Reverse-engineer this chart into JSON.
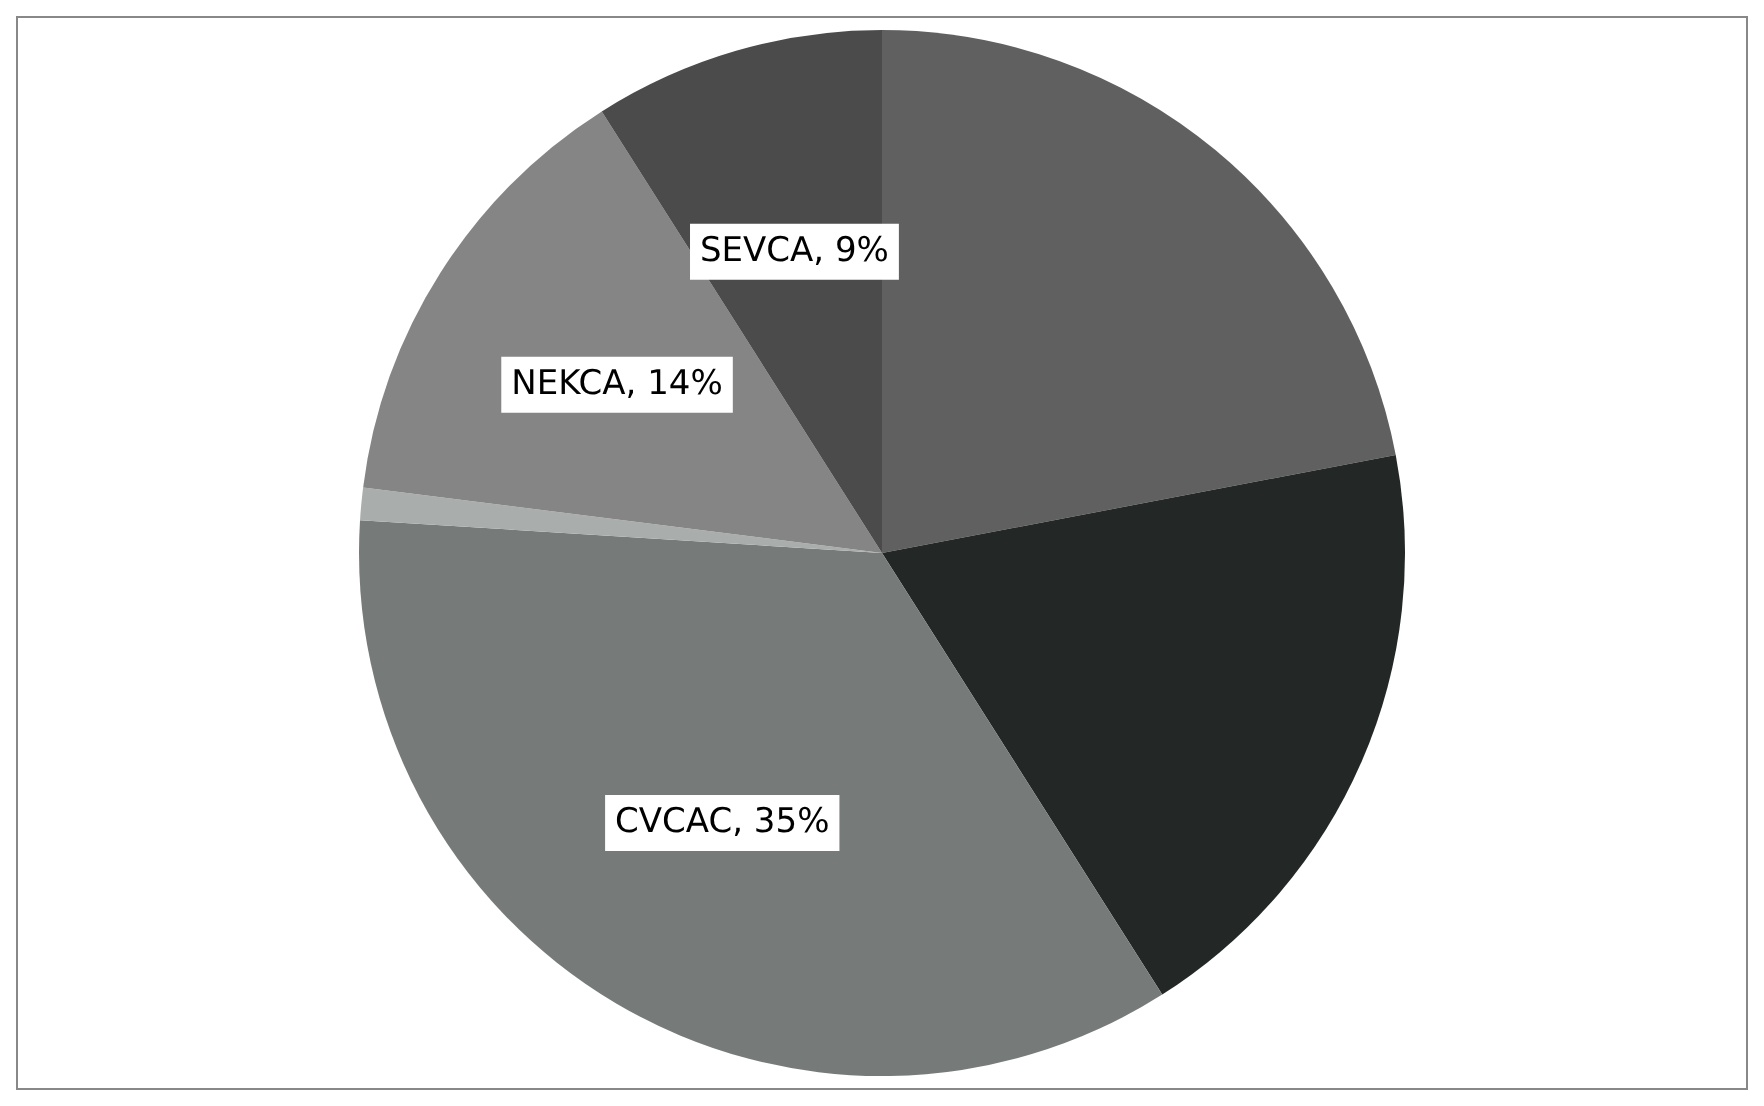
{
  "chart_data": {
    "type": "pie",
    "categories": [
      null,
      null,
      "CVCAC",
      null,
      "NEKCA",
      "SEVCA"
    ],
    "values": [
      22,
      19,
      35,
      1,
      14,
      9
    ],
    "colors": [
      "#606060",
      "#232826",
      "#767b79",
      "#a9aeac",
      "#858585",
      "#4b4b4b"
    ],
    "value_labels": [
      null,
      null,
      "35%",
      null,
      "14%",
      "9%"
    ],
    "legend": false
  }
}
